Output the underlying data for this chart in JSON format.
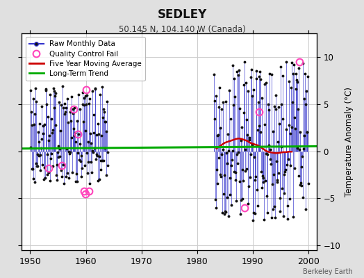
{
  "title": "SEDLEY",
  "subtitle": "50.145 N, 104.140 W (Canada)",
  "ylabel": "Temperature Anomaly (°C)",
  "credit": "Berkeley Earth",
  "xlim": [
    1948.5,
    2001.5
  ],
  "ylim": [
    -10.5,
    12.5
  ],
  "yticks": [
    -10,
    -5,
    0,
    5,
    10
  ],
  "xticks": [
    1950,
    1960,
    1970,
    1980,
    1990,
    2000
  ],
  "bg_color": "#e0e0e0",
  "plot_bg_color": "#ffffff",
  "grid_color": "#cccccc",
  "raw_line_color": "#3333cc",
  "raw_marker_color": "#111111",
  "qc_fail_color": "#ff44bb",
  "moving_avg_color": "#cc0000",
  "trend_color": "#00aa00",
  "seg1_seed": 42,
  "seg1_start": 1950,
  "seg1_end": 1963,
  "seg2_seed": 77,
  "seg2_start": 1983,
  "seg2_end": 1999,
  "qc_x": [
    1953.3,
    1955.7,
    1957.8,
    1958.6,
    1959.7,
    1959.9,
    1960.1,
    1960.5,
    1988.5,
    1991.2,
    1998.4
  ],
  "qc_y": [
    -1.8,
    -1.5,
    4.5,
    1.8,
    -4.2,
    -4.5,
    6.5,
    -4.2,
    -6.0,
    4.2,
    9.5
  ],
  "moving_avg_x": [
    1983.5,
    1984.0,
    1984.5,
    1985.0,
    1985.5,
    1986.0,
    1986.5,
    1987.0,
    1987.5,
    1988.0,
    1988.5,
    1989.0,
    1989.5,
    1990.0,
    1990.5,
    1991.0,
    1991.5,
    1992.0,
    1992.5,
    1993.0,
    1993.5,
    1994.0,
    1994.5,
    1995.0,
    1995.5,
    1996.0,
    1996.5,
    1997.0
  ],
  "moving_avg_y": [
    0.3,
    0.5,
    0.7,
    0.9,
    1.0,
    1.1,
    1.2,
    1.3,
    1.35,
    1.3,
    1.2,
    1.1,
    0.9,
    0.8,
    0.7,
    0.6,
    0.4,
    0.2,
    0.0,
    -0.1,
    -0.15,
    -0.2,
    -0.2,
    -0.15,
    -0.1,
    -0.1,
    -0.05,
    -0.05
  ],
  "trend_x": [
    1948.5,
    2001.5
  ],
  "trend_y": [
    0.28,
    0.52
  ]
}
